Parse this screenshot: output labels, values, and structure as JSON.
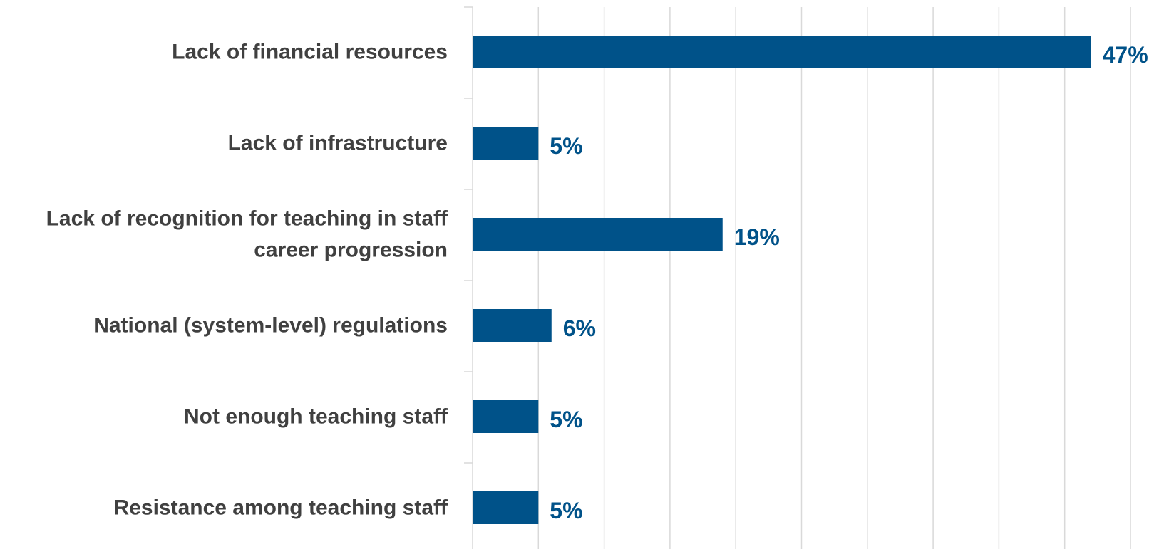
{
  "chart_data": {
    "type": "bar",
    "orientation": "horizontal",
    "categories": [
      [
        "Lack of financial resources"
      ],
      [
        "Lack of infrastructure"
      ],
      [
        "Lack of recognition for teaching in staff",
        "career progression"
      ],
      [
        "National (system-level) regulations"
      ],
      [
        "Not enough teaching staff"
      ],
      [
        "Resistance among teaching staff"
      ]
    ],
    "values": [
      47,
      5,
      19,
      6,
      5,
      5
    ],
    "value_labels": [
      "47%",
      "5%",
      "19%",
      "6%",
      "5%",
      "5%"
    ],
    "unit": "%",
    "xlim": [
      0,
      50
    ],
    "gridlines": true,
    "legend": "none",
    "title": "",
    "xlabel": "",
    "ylabel": ""
  },
  "colors": {
    "bar": "#005289",
    "label_text": "#404040",
    "value_text": "#005289",
    "grid": "#d9d9d9"
  }
}
